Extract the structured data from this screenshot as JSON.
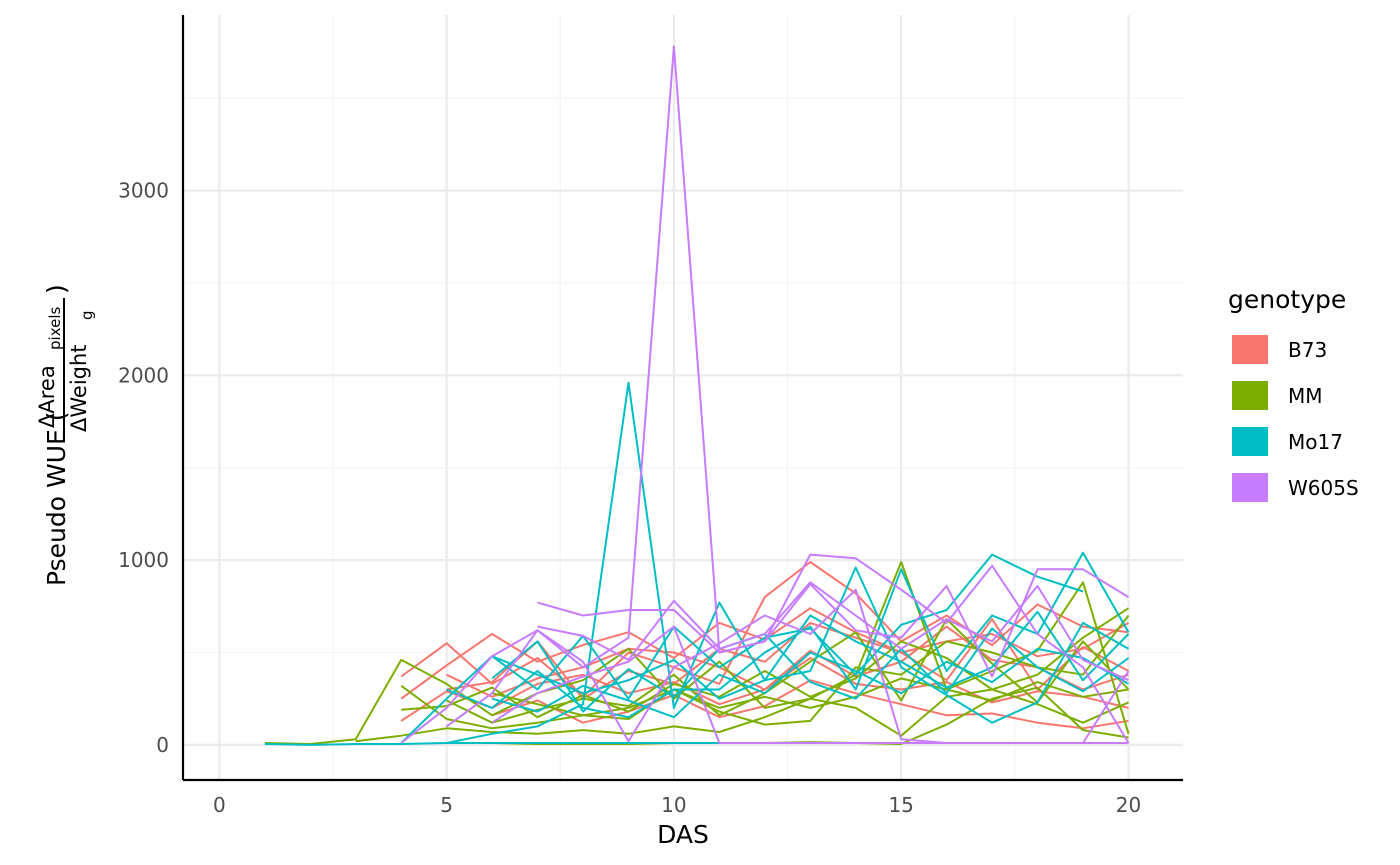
{
  "chart_data": {
    "type": "line",
    "title": "",
    "xlabel": "DAS",
    "ylabel": {
      "prefix": "Pseudo WUE (",
      "numerator": "ΔArea",
      "numerator_sub": "pixels",
      "denominator": "ΔWeight",
      "denominator_sub": "g",
      "suffix": ")"
    },
    "xlim": [
      -0.8,
      21.2
    ],
    "ylim": [
      -190,
      3950
    ],
    "x_ticks": [
      0,
      5,
      10,
      15,
      20
    ],
    "y_ticks": [
      0,
      1000,
      2000,
      3000
    ],
    "x_tick_labels": [
      "0",
      "5",
      "10",
      "15",
      "20"
    ],
    "y_tick_labels": [
      "0",
      "1000",
      "2000",
      "3000"
    ],
    "grid": true,
    "legend": {
      "title": "genotype",
      "position": "right",
      "entries": [
        {
          "label": "B73",
          "color": "#F8766D"
        },
        {
          "label": "MM",
          "color": "#7CAE00"
        },
        {
          "label": "Mo17",
          "color": "#00BFC4"
        },
        {
          "label": "W605S",
          "color": "#C77CFF"
        }
      ]
    },
    "x": [
      1,
      2,
      3,
      4,
      5,
      6,
      7,
      8,
      9,
      10,
      11,
      12,
      13,
      14,
      15,
      16,
      17,
      18,
      19,
      20
    ],
    "series": [
      {
        "name": "B73",
        "color": "#F8766D",
        "lines": [
          {
            "x_start": 4,
            "values": [
              370,
              550,
              330,
              470,
              260,
              500,
              420,
              330,
              800,
              990,
              820,
              560,
              700,
              540,
              760,
              640,
              610
            ]
          },
          {
            "x_start": 4,
            "values": [
              250,
              430,
              600,
              450,
              540,
              610,
              470,
              660,
              570,
              740,
              610,
              500,
              560,
              600,
              480,
              520,
              660
            ]
          },
          {
            "x_start": 5,
            "values": [
              300,
              340,
              560,
              250,
              400,
              330,
              520,
              450,
              660,
              580,
              500,
              350,
              680,
              300,
              530,
              400
            ]
          },
          {
            "x_start": 5,
            "values": [
              380,
              260,
              360,
              420,
              520,
              500,
              420,
              300,
              510,
              370,
              450,
              640,
              460,
              420,
              300,
              380
            ]
          },
          {
            "x_start": 4,
            "values": [
              130,
              290,
              200,
              330,
              380,
              280,
              340,
              220,
              300,
              470,
              330,
              300,
              340,
              230,
              290,
              260,
              200
            ]
          },
          {
            "x_start": 6,
            "values": [
              160,
              240,
              120,
              180,
              270,
              150,
              210,
              350,
              280,
              220,
              160,
              170,
              120,
              90,
              130
            ]
          }
        ]
      },
      {
        "name": "MM",
        "color": "#7CAE00",
        "lines": [
          {
            "x_start": 1,
            "values": [
              10,
              5,
              30,
              460,
              330,
              160,
              280,
              350,
              520,
              250,
              450,
              200,
              250,
              380,
              990,
              300,
              400,
              510,
              880,
              60
            ]
          },
          {
            "x_start": 4,
            "values": [
              190,
              210,
              310,
              150,
              270,
              180,
              330,
              260,
              400,
              260,
              360,
              560,
              470,
              300,
              380,
              580,
              740
            ]
          },
          {
            "x_start": 5,
            "values": [
              240,
              120,
              190,
              250,
              210,
              380,
              160,
              280,
              450,
              610,
              240,
              680,
              440,
              230,
              560,
              300
            ]
          },
          {
            "x_start": 4,
            "values": [
              320,
              140,
              90,
              120,
              160,
              140,
              300,
              200,
              260,
              200,
              260,
              360,
              300,
              240,
              340,
              260,
              300
            ]
          },
          {
            "x_start": 3,
            "values": [
              20,
              50,
              90,
              70,
              60,
              80,
              60,
              100,
              70,
              150,
              250,
              200,
              50,
              260,
              300,
              220,
              120,
              230
            ]
          },
          {
            "x_start": 5,
            "values": [
              10,
              10,
              5,
              5,
              5,
              10,
              10,
              10,
              15,
              10,
              5,
              110,
              250,
              310,
              80,
              40
            ]
          },
          {
            "x_start": 6,
            "values": [
              280,
              220,
              160,
              200,
              300,
              180,
              110,
              130,
              420,
              380,
              560,
              500,
              420,
              380,
              700
            ]
          }
        ]
      },
      {
        "name": "Mo17",
        "color": "#00BFC4",
        "lines": [
          {
            "x_start": 1,
            "values": [
              5,
              0,
              5,
              5,
              10,
              60,
              100,
              220,
              1960,
              200,
              770,
              350,
              400,
              960,
              420,
              270,
              120,
              230,
              660,
              520
            ]
          },
          {
            "x_start": 4,
            "values": [
              10,
              250,
              480,
              300,
              590,
              250,
              640,
              420,
              580,
              630,
              380,
              650,
              730,
              1030,
              910,
              830
            ]
          },
          {
            "x_start": 5,
            "values": [
              300,
              200,
              400,
              200,
              150,
              300,
              300,
              500,
              640,
              300,
              950,
              400,
              700,
              600,
              1040,
              610
            ]
          },
          {
            "x_start": 6,
            "values": [
              480,
              380,
              280,
              350,
              460,
              250,
              350,
              700,
              560,
              450,
              310,
              420,
              720,
              350,
              600
            ]
          },
          {
            "x_start": 5,
            "values": [
              10,
              10,
              10,
              10,
              10,
              10,
              10,
              10,
              10,
              10,
              10,
              10,
              10,
              10,
              10,
              10
            ]
          },
          {
            "x_start": 6,
            "values": [
              250,
              180,
              320,
              240,
              150,
              380,
              280,
              500,
              400,
              280,
              450,
              340,
              520,
              470,
              330
            ]
          },
          {
            "x_start": 6,
            "values": [
              360,
              560,
              180,
              410,
              260,
              520,
              600,
              340,
              250,
              520,
              280,
              630,
              420,
              290,
              470
            ]
          }
        ]
      },
      {
        "name": "W605S",
        "color": "#C77CFF",
        "lines": [
          {
            "x_start": 4,
            "values": [
              10,
              200,
              480,
              620,
              420,
              580,
              3780,
              500,
              560,
              870,
              620,
              580,
              860,
              370,
              950,
              950,
              800
            ]
          },
          {
            "x_start": 7,
            "values": [
              770,
              700,
              730,
              730,
              500,
              560,
              1030,
              1010,
              840,
              660,
              970,
              600,
              420,
              10
            ]
          },
          {
            "x_start": 5,
            "values": [
              100,
              280,
              620,
              450,
              20,
              420,
              550,
              700,
              600,
              840,
              30,
              10,
              10,
              10,
              10,
              400
            ]
          },
          {
            "x_start": 7,
            "values": [
              640,
              590,
              460,
              780,
              520,
              600,
              880,
              700,
              520,
              680,
              560,
              860,
              460,
              350
            ]
          },
          {
            "x_start": 6,
            "values": [
              120,
              280,
              370,
              450,
              640,
              10,
              10,
              10,
              10,
              10,
              10,
              10,
              10,
              10,
              10
            ]
          }
        ]
      }
    ]
  }
}
